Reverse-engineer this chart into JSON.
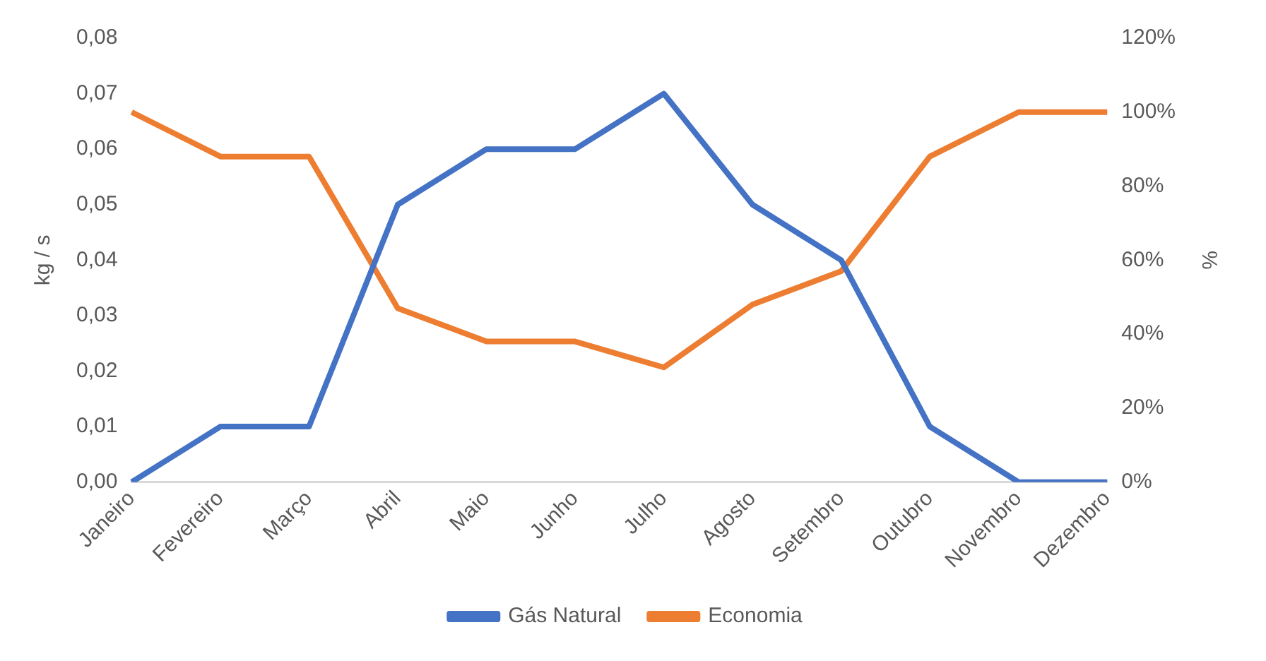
{
  "chart_data": {
    "type": "line",
    "ylabel": "kg / s",
    "y2label": "%",
    "categories": [
      "Janeiro",
      "Fevereiro",
      "Março",
      "Abril",
      "Maio",
      "Junho",
      "Julho",
      "Agosto",
      "Setembro",
      "Outubro",
      "Novembro",
      "Dezembro"
    ],
    "series": [
      {
        "name": "Gás Natural",
        "color": "#4472c4",
        "values": [
          0,
          0.01,
          0.01,
          0.05,
          0.06,
          0.06,
          0.07,
          0.05,
          0.04,
          0.01,
          0,
          0
        ]
      },
      {
        "name": "Economia",
        "color": "#ed7d31",
        "axis": "y2",
        "values": [
          100,
          88,
          88,
          47,
          38,
          38,
          31,
          48,
          57,
          88,
          100,
          100
        ]
      }
    ],
    "ylim": [
      0,
      0.08
    ],
    "yticks": [
      {
        "value": 0,
        "label": "0,00"
      },
      {
        "value": 0.01,
        "label": "0,01"
      },
      {
        "value": 0.02,
        "label": "0,02"
      },
      {
        "value": 0.03,
        "label": "0,03"
      },
      {
        "value": 0.04,
        "label": "0,04"
      },
      {
        "value": 0.05,
        "label": "0,05"
      },
      {
        "value": 0.06,
        "label": "0,06"
      },
      {
        "value": 0.07,
        "label": "0,07"
      },
      {
        "value": 0.08,
        "label": "0,08"
      }
    ],
    "y2lim": [
      0,
      120
    ],
    "y2ticks": [
      {
        "value": 0,
        "label": "0%"
      },
      {
        "value": 20,
        "label": "20%"
      },
      {
        "value": 40,
        "label": "40%"
      },
      {
        "value": 60,
        "label": "60%"
      },
      {
        "value": 80,
        "label": "80%"
      },
      {
        "value": 100,
        "label": "100%"
      },
      {
        "value": 120,
        "label": "120%"
      }
    ],
    "grid": false,
    "legend": "bottom",
    "marker": "none",
    "line_style": "solid"
  }
}
